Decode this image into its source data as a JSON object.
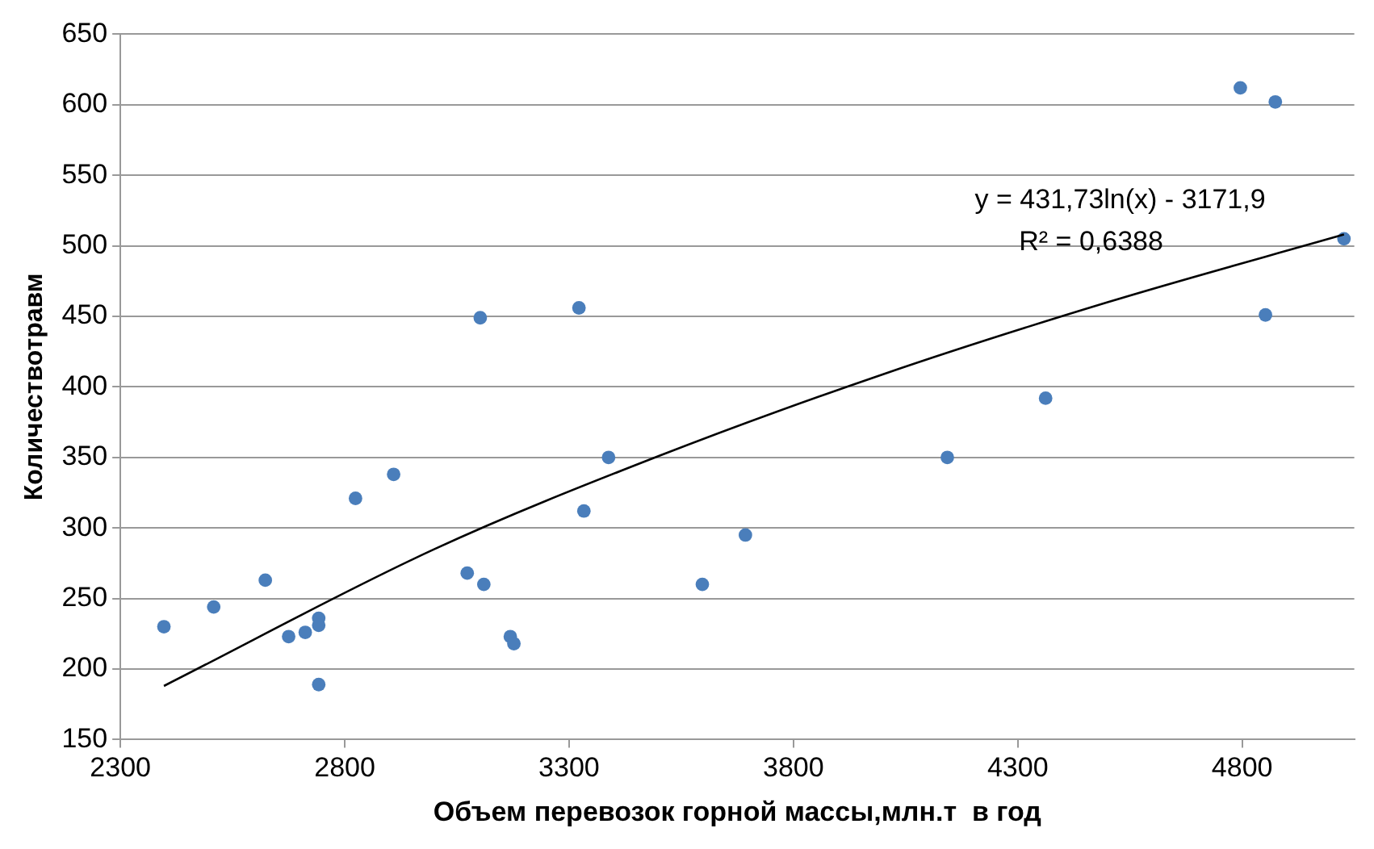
{
  "chart_data": {
    "type": "scatter",
    "xlabel": "Объем перевозок горной массы,млн.т  в год",
    "ylabel": "Количествотравм",
    "xlim": [
      2300,
      5050
    ],
    "xticks": [
      2300,
      2800,
      3300,
      3800,
      4300,
      4800
    ],
    "ylim": [
      150,
      650
    ],
    "yticks": [
      150,
      200,
      250,
      300,
      350,
      400,
      450,
      500,
      550,
      600,
      650
    ],
    "grid": "y",
    "legend": false,
    "marker": "circle",
    "series": [
      {
        "color": "#4a7ebb",
        "x": [
          2397,
          2508,
          2623,
          2675,
          2712,
          2742,
          2742,
          2742,
          2824,
          2909,
          3073,
          3110,
          3102,
          3169,
          3177,
          3322,
          3333,
          3388,
          3597,
          3693,
          4143,
          4362,
          4796,
          4874,
          4852,
          5027
        ],
        "values": [
          230,
          244,
          263,
          223,
          226,
          236,
          231,
          189,
          321,
          338,
          268,
          260,
          449,
          223,
          218,
          456,
          312,
          350,
          260,
          295,
          350,
          392,
          612,
          602,
          451,
          505
        ]
      },
      {
        "type": "line",
        "color": "#000000",
        "marker": "none",
        "x": [
          2397,
          3000,
          3500,
          4000,
          4500,
          5027
        ],
        "values": [
          188,
          285,
          351,
          409,
          460,
          508
        ]
      }
    ],
    "annotations": [
      "y = 431,73ln(x) - 3171,9",
      "R² = 0,6388"
    ]
  }
}
